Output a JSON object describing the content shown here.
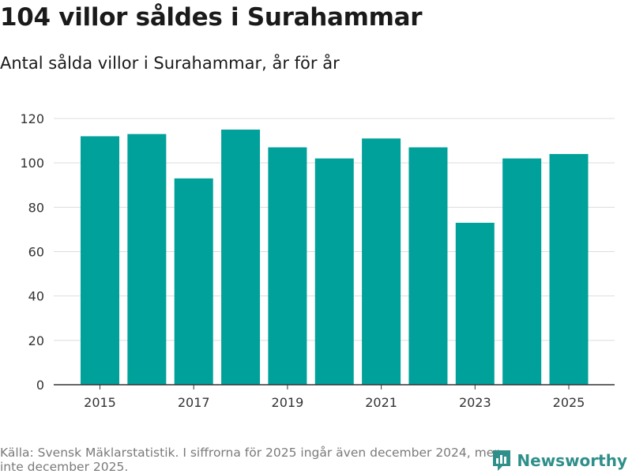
{
  "title": "104 villor såldes i Surahammar",
  "subtitle": "Antal sålda villor i Surahammar, år för år",
  "source": "Källa: Svensk Mäklarstatistik. I siffrorna för 2025 ingår även december 2024, men inte december 2025.",
  "brand": "Newsworthy",
  "colors": {
    "bar": "#00a19a",
    "grid": "#dddddd",
    "axis": "#333333",
    "brand": "#2f8f8a"
  },
  "chart_data": {
    "type": "bar",
    "title": "104 villor såldes i Surahammar",
    "subtitle": "Antal sålda villor i Surahammar, år för år",
    "categories": [
      2015,
      2016,
      2017,
      2018,
      2019,
      2020,
      2021,
      2022,
      2023,
      2024,
      2025
    ],
    "values": [
      112,
      113,
      93,
      115,
      107,
      102,
      111,
      107,
      73,
      102,
      104
    ],
    "x_tick_labels": [
      "2015",
      "2017",
      "2019",
      "2021",
      "2023",
      "2025"
    ],
    "y_ticks": [
      0,
      20,
      40,
      60,
      80,
      100,
      120
    ],
    "ylim": [
      0,
      120
    ],
    "xlabel": "",
    "ylabel": "",
    "grid": true
  }
}
